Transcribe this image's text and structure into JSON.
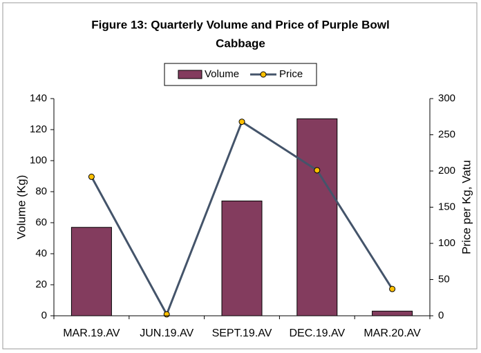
{
  "chart_data": {
    "type": "bar_line",
    "title": "Figure 13: Quarterly Volume and Price of Purple Bowl",
    "title_line2": "Cabbage",
    "categories": [
      "MAR.19.AV",
      "JUN.19.AV",
      "SEPT.19.AV",
      "DEC.19.AV",
      "MAR.20.AV"
    ],
    "series": [
      {
        "name": "Volume",
        "color": "#833c5e",
        "type": "bar",
        "axis": "y",
        "values": [
          57,
          0,
          74,
          127,
          3
        ]
      },
      {
        "name": "Price",
        "color": "#44546a",
        "marker_color": "#ffc000",
        "type": "line",
        "axis": "y2",
        "values": [
          192,
          2,
          268,
          201,
          37
        ]
      }
    ],
    "ylabel": "Volume (Kg)",
    "y2label": "Price per Kg, Vatu",
    "ylim": [
      0,
      140
    ],
    "yticks": [
      0,
      20,
      40,
      60,
      80,
      100,
      120,
      140
    ],
    "y2lim": [
      0,
      300
    ],
    "y2ticks": [
      0,
      50,
      100,
      150,
      200,
      250,
      300
    ],
    "grid": false,
    "legend": "top"
  }
}
